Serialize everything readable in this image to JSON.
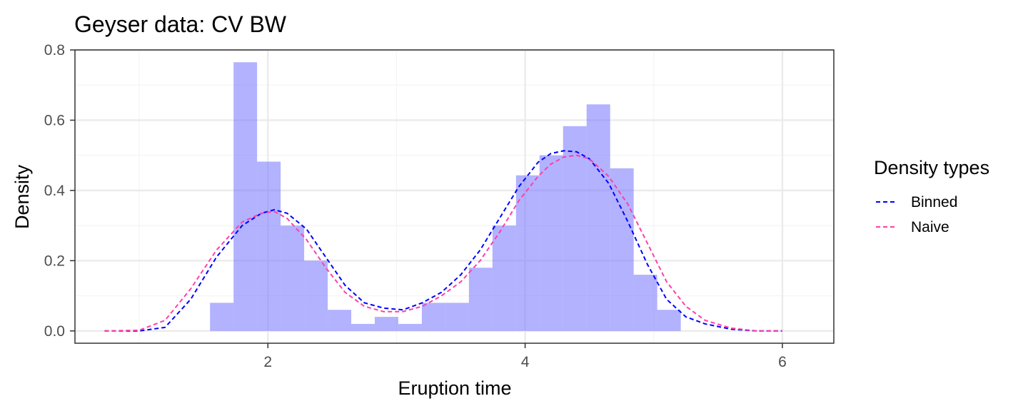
{
  "colors": {
    "histogram_fill": "#7373ff",
    "binned_line": "#0000ff",
    "naive_line": "#ff3fa8",
    "grid_major": "#ebebeb",
    "grid_minor": "#f4f4f4",
    "panel_border": "#333333",
    "tick_text": "#4d4d4d"
  },
  "chart_data": {
    "type": "area",
    "title": "Geyser data: CV BW",
    "xlabel": "Eruption time",
    "ylabel": "Density",
    "xlim": [
      0.5,
      6.4
    ],
    "ylim": [
      -0.035,
      0.8
    ],
    "x_ticks": [
      2,
      4,
      6
    ],
    "x_tick_labels": [
      "2",
      "4",
      "6"
    ],
    "y_ticks": [
      0,
      0.2,
      0.4,
      0.6,
      0.8
    ],
    "y_tick_labels": [
      "0.0",
      "0.2",
      "0.4",
      "0.6",
      "0.8"
    ],
    "grid": true,
    "legend": {
      "title": "Density types",
      "position": "right",
      "entries": [
        "Binned",
        "Naive"
      ]
    },
    "histogram": {
      "bin_width": 0.183,
      "bins": [
        {
          "x0": 1.55,
          "density": 0.08
        },
        {
          "x0": 1.733,
          "density": 0.765
        },
        {
          "x0": 1.916,
          "density": 0.482
        },
        {
          "x0": 2.099,
          "density": 0.3
        },
        {
          "x0": 2.282,
          "density": 0.2
        },
        {
          "x0": 2.465,
          "density": 0.06
        },
        {
          "x0": 2.648,
          "density": 0.02
        },
        {
          "x0": 2.831,
          "density": 0.04
        },
        {
          "x0": 3.014,
          "density": 0.02
        },
        {
          "x0": 3.197,
          "density": 0.08
        },
        {
          "x0": 3.38,
          "density": 0.08
        },
        {
          "x0": 3.563,
          "density": 0.18
        },
        {
          "x0": 3.746,
          "density": 0.3
        },
        {
          "x0": 3.929,
          "density": 0.443
        },
        {
          "x0": 4.112,
          "density": 0.5
        },
        {
          "x0": 4.295,
          "density": 0.583
        },
        {
          "x0": 4.478,
          "density": 0.645
        },
        {
          "x0": 4.661,
          "density": 0.463
        },
        {
          "x0": 4.844,
          "density": 0.16
        },
        {
          "x0": 5.027,
          "density": 0.06
        }
      ]
    },
    "series": [
      {
        "name": "Binned",
        "style": "dashed",
        "x": [
          0.73,
          1.0,
          1.2,
          1.4,
          1.6,
          1.8,
          1.95,
          2.05,
          2.15,
          2.3,
          2.45,
          2.6,
          2.75,
          2.9,
          3.05,
          3.2,
          3.35,
          3.5,
          3.65,
          3.8,
          3.95,
          4.1,
          4.2,
          4.3,
          4.4,
          4.5,
          4.65,
          4.8,
          4.95,
          5.1,
          5.25,
          5.4,
          5.6,
          5.8,
          6.0
        ],
        "y": [
          0.0,
          0.0,
          0.01,
          0.09,
          0.21,
          0.3,
          0.335,
          0.345,
          0.335,
          0.29,
          0.21,
          0.13,
          0.08,
          0.065,
          0.06,
          0.08,
          0.11,
          0.16,
          0.23,
          0.32,
          0.41,
          0.48,
          0.505,
          0.513,
          0.51,
          0.49,
          0.42,
          0.31,
          0.19,
          0.09,
          0.04,
          0.02,
          0.005,
          0.0,
          0.0
        ]
      },
      {
        "name": "Naive",
        "style": "dashed",
        "x": [
          0.73,
          1.0,
          1.2,
          1.4,
          1.6,
          1.8,
          1.95,
          2.05,
          2.15,
          2.3,
          2.45,
          2.6,
          2.75,
          2.9,
          3.05,
          3.2,
          3.35,
          3.5,
          3.65,
          3.8,
          3.95,
          4.1,
          4.2,
          4.3,
          4.4,
          4.5,
          4.65,
          4.8,
          4.95,
          5.1,
          5.25,
          5.4,
          5.6,
          5.8,
          6.0
        ],
        "y": [
          0.0,
          0.002,
          0.03,
          0.12,
          0.23,
          0.31,
          0.335,
          0.34,
          0.32,
          0.26,
          0.18,
          0.11,
          0.07,
          0.055,
          0.055,
          0.07,
          0.1,
          0.14,
          0.2,
          0.28,
          0.37,
          0.44,
          0.475,
          0.495,
          0.5,
          0.49,
          0.44,
          0.36,
          0.25,
          0.14,
          0.07,
          0.03,
          0.008,
          0.0,
          0.0
        ]
      }
    ]
  }
}
